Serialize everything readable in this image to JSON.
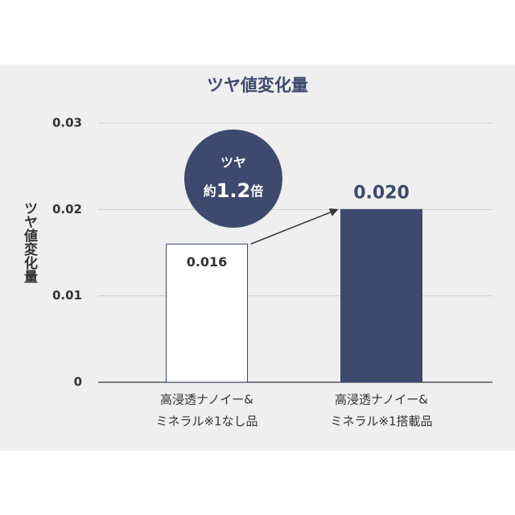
{
  "chart_data": {
    "type": "bar",
    "title": "ツヤ値変化量",
    "y_label": "ツヤ値変化量",
    "categories": [
      [
        "高浸透ナノイー&",
        "ミネラル※1なし品"
      ],
      [
        "高浸透ナノイー&",
        "ミネラル※1搭載品"
      ]
    ],
    "values": [
      0.016,
      0.02
    ],
    "value_labels": [
      "0.016",
      "0.020"
    ],
    "colors": [
      "#ffffff",
      "#3d4a6e"
    ],
    "edge_color": "#3d4a6e",
    "ylim": [
      0,
      0.03
    ],
    "yticks": [
      {
        "value": 0,
        "label": "0"
      },
      {
        "value": 0.01,
        "label": "0.01"
      },
      {
        "value": 0.02,
        "label": "0.02"
      },
      {
        "value": 0.03,
        "label": "0.03"
      }
    ],
    "grid": true,
    "annotation": {
      "line1": "ツヤ",
      "prefix": "約",
      "ratio": "1.2",
      "suffix": "倍"
    }
  }
}
